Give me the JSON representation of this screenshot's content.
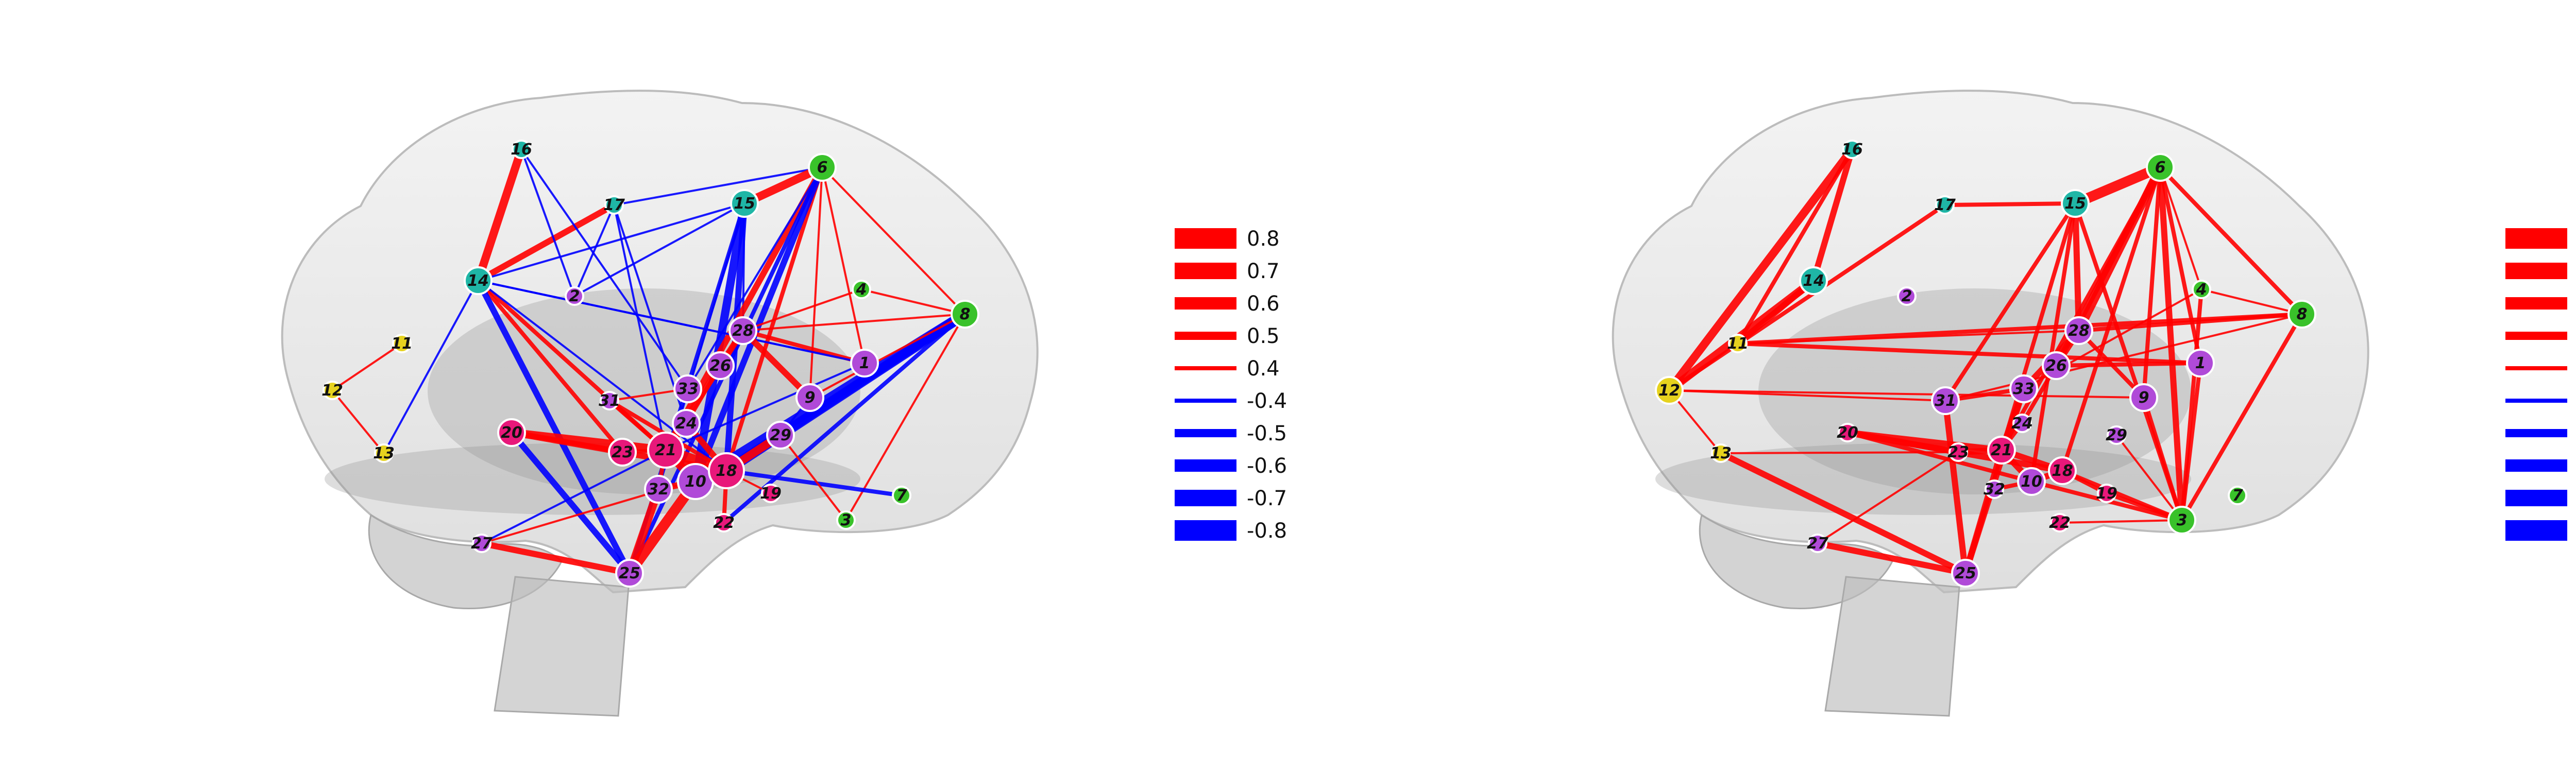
{
  "colors": {
    "positive": "#ff0000",
    "negative": "#0000ff",
    "brain": "#c9c9c9",
    "node_yellow": "#e6d21e",
    "node_green": "#39c22a",
    "node_teal": "#1fb6a6",
    "node_purple": "#b04ad8",
    "node_pink": "#e8187a"
  },
  "panels": [
    {
      "id": "left",
      "nodes": [
        {
          "id": "1",
          "label": "1",
          "color": "purple",
          "size": 1
        },
        {
          "id": "2",
          "label": "2",
          "color": "purple",
          "size": 0
        },
        {
          "id": "3",
          "label": "3",
          "color": "green",
          "size": 0
        },
        {
          "id": "4",
          "label": "4",
          "color": "green",
          "size": 0
        },
        {
          "id": "6",
          "label": "6",
          "color": "green",
          "size": 1
        },
        {
          "id": "7",
          "label": "7",
          "color": "green",
          "size": 0
        },
        {
          "id": "8",
          "label": "8",
          "color": "green",
          "size": 1
        },
        {
          "id": "9",
          "label": "9",
          "color": "purple",
          "size": 1
        },
        {
          "id": "10",
          "label": "10",
          "color": "purple",
          "size": 2
        },
        {
          "id": "11",
          "label": "11",
          "color": "yellow",
          "size": 0
        },
        {
          "id": "12",
          "label": "12",
          "color": "yellow",
          "size": 0
        },
        {
          "id": "13",
          "label": "13",
          "color": "yellow",
          "size": 0
        },
        {
          "id": "14",
          "label": "14",
          "color": "teal",
          "size": 1
        },
        {
          "id": "15",
          "label": "15",
          "color": "teal",
          "size": 1
        },
        {
          "id": "16",
          "label": "16",
          "color": "teal",
          "size": 0
        },
        {
          "id": "17",
          "label": "17",
          "color": "teal",
          "size": 0
        },
        {
          "id": "18",
          "label": "18",
          "color": "pink",
          "size": 2
        },
        {
          "id": "19",
          "label": "19",
          "color": "pink",
          "size": 0
        },
        {
          "id": "20",
          "label": "20",
          "color": "pink",
          "size": 1
        },
        {
          "id": "21",
          "label": "21",
          "color": "pink",
          "size": 2
        },
        {
          "id": "22",
          "label": "22",
          "color": "pink",
          "size": 0
        },
        {
          "id": "23",
          "label": "23",
          "color": "pink",
          "size": 1
        },
        {
          "id": "24",
          "label": "24",
          "color": "purple",
          "size": 1
        },
        {
          "id": "25",
          "label": "25",
          "color": "purple",
          "size": 1
        },
        {
          "id": "26",
          "label": "26",
          "color": "purple",
          "size": 1
        },
        {
          "id": "27",
          "label": "27",
          "color": "purple",
          "size": 0
        },
        {
          "id": "28",
          "label": "28",
          "color": "purple",
          "size": 1
        },
        {
          "id": "29",
          "label": "29",
          "color": "purple",
          "size": 1
        },
        {
          "id": "31",
          "label": "31",
          "color": "purple",
          "size": 0
        },
        {
          "id": "32",
          "label": "32",
          "color": "purple",
          "size": 1
        },
        {
          "id": "33",
          "label": "33",
          "color": "purple",
          "size": 1
        }
      ],
      "edges": [
        {
          "a": "16",
          "b": "14",
          "w": 0.7
        },
        {
          "a": "17",
          "b": "14",
          "w": 0.6
        },
        {
          "a": "14",
          "b": "23",
          "w": 0.5
        },
        {
          "a": "14",
          "b": "21",
          "w": 0.5
        },
        {
          "a": "14",
          "b": "18",
          "w": -0.4
        },
        {
          "a": "14",
          "b": "13",
          "w": -0.4
        },
        {
          "a": "14",
          "b": "15",
          "w": -0.4
        },
        {
          "a": "14",
          "b": "25",
          "w": -0.6
        },
        {
          "a": "14",
          "b": "1",
          "w": -0.4
        },
        {
          "a": "12",
          "b": "11",
          "w": 0.4
        },
        {
          "a": "12",
          "b": "13",
          "w": 0.4
        },
        {
          "a": "16",
          "b": "2",
          "w": -0.4
        },
        {
          "a": "16",
          "b": "33",
          "w": -0.4
        },
        {
          "a": "17",
          "b": "2",
          "w": -0.4
        },
        {
          "a": "17",
          "b": "24",
          "w": -0.4
        },
        {
          "a": "17",
          "b": "21",
          "w": -0.4
        },
        {
          "a": "17",
          "b": "6",
          "w": -0.4
        },
        {
          "a": "15",
          "b": "6",
          "w": 0.7
        },
        {
          "a": "15",
          "b": "10",
          "w": -0.7
        },
        {
          "a": "15",
          "b": "18",
          "w": -0.6
        },
        {
          "a": "15",
          "b": "25",
          "w": -0.5
        },
        {
          "a": "15",
          "b": "28",
          "w": -0.4
        },
        {
          "a": "15",
          "b": "2",
          "w": -0.4
        },
        {
          "a": "15",
          "b": "32",
          "w": -0.4
        },
        {
          "a": "6",
          "b": "21",
          "w": 0.6
        },
        {
          "a": "6",
          "b": "18",
          "w": 0.5
        },
        {
          "a": "6",
          "b": "9",
          "w": 0.4
        },
        {
          "a": "6",
          "b": "8",
          "w": 0.4
        },
        {
          "a": "6",
          "b": "1",
          "w": 0.4
        },
        {
          "a": "6",
          "b": "33",
          "w": -0.4
        },
        {
          "a": "6",
          "b": "10",
          "w": -0.6
        },
        {
          "a": "6",
          "b": "25",
          "w": -0.5
        },
        {
          "a": "4",
          "b": "8",
          "w": 0.4
        },
        {
          "a": "4",
          "b": "28",
          "w": 0.4
        },
        {
          "a": "8",
          "b": "18",
          "w": -0.8
        },
        {
          "a": "8",
          "b": "10",
          "w": -0.8
        },
        {
          "a": "8",
          "b": "29",
          "w": -0.7
        },
        {
          "a": "8",
          "b": "22",
          "w": -0.5
        },
        {
          "a": "8",
          "b": "3",
          "w": 0.4
        },
        {
          "a": "8",
          "b": "28",
          "w": 0.4
        },
        {
          "a": "8",
          "b": "9",
          "w": 0.4
        },
        {
          "a": "1",
          "b": "28",
          "w": 0.5
        },
        {
          "a": "1",
          "b": "14",
          "w": -0.4
        },
        {
          "a": "28",
          "b": "9",
          "w": 0.6
        },
        {
          "a": "28",
          "b": "26",
          "w": 0.5
        },
        {
          "a": "28",
          "b": "21",
          "w": 0.6
        },
        {
          "a": "26",
          "b": "24",
          "w": 0.5
        },
        {
          "a": "24",
          "b": "21",
          "w": 0.6
        },
        {
          "a": "24",
          "b": "18",
          "w": 0.6
        },
        {
          "a": "33",
          "b": "31",
          "w": 0.4
        },
        {
          "a": "31",
          "b": "21",
          "w": 0.5
        },
        {
          "a": "31",
          "b": "18",
          "w": 0.5
        },
        {
          "a": "20",
          "b": "21",
          "w": 0.7
        },
        {
          "a": "20",
          "b": "18",
          "w": 0.6
        },
        {
          "a": "20",
          "b": "23",
          "w": 0.5
        },
        {
          "a": "20",
          "b": "25",
          "w": -0.6
        },
        {
          "a": "23",
          "b": "21",
          "w": 0.5
        },
        {
          "a": "21",
          "b": "18",
          "w": 0.8
        },
        {
          "a": "21",
          "b": "10",
          "w": 0.7
        },
        {
          "a": "21",
          "b": "32",
          "w": 0.5
        },
        {
          "a": "18",
          "b": "10",
          "w": 0.8
        },
        {
          "a": "18",
          "b": "29",
          "w": 0.7
        },
        {
          "a": "18",
          "b": "19",
          "w": 0.4
        },
        {
          "a": "18",
          "b": "7",
          "w": -0.5
        },
        {
          "a": "29",
          "b": "3",
          "w": 0.4
        },
        {
          "a": "10",
          "b": "32",
          "w": 0.6
        },
        {
          "a": "10",
          "b": "25",
          "w": 0.8
        },
        {
          "a": "32",
          "b": "25",
          "w": 0.7
        },
        {
          "a": "25",
          "b": "27",
          "w": 0.6
        },
        {
          "a": "27",
          "b": "21",
          "w": -0.4
        },
        {
          "a": "27",
          "b": "18",
          "w": 0.4
        },
        {
          "a": "22",
          "b": "18",
          "w": 0.5
        },
        {
          "a": "9",
          "b": "29",
          "w": -0.4
        },
        {
          "a": "1",
          "b": "21",
          "w": -0.4
        }
      ]
    },
    {
      "id": "right",
      "nodes": [
        {
          "id": "1",
          "label": "1",
          "color": "purple",
          "size": 1
        },
        {
          "id": "2",
          "label": "2",
          "color": "purple",
          "size": 0
        },
        {
          "id": "3",
          "label": "3",
          "color": "green",
          "size": 1
        },
        {
          "id": "4",
          "label": "4",
          "color": "green",
          "size": 0
        },
        {
          "id": "6",
          "label": "6",
          "color": "green",
          "size": 1
        },
        {
          "id": "7",
          "label": "7",
          "color": "green",
          "size": 0
        },
        {
          "id": "8",
          "label": "8",
          "color": "green",
          "size": 1
        },
        {
          "id": "9",
          "label": "9",
          "color": "purple",
          "size": 1
        },
        {
          "id": "10",
          "label": "10",
          "color": "purple",
          "size": 1
        },
        {
          "id": "11",
          "label": "11",
          "color": "yellow",
          "size": 0
        },
        {
          "id": "12",
          "label": "12",
          "color": "yellow",
          "size": 1
        },
        {
          "id": "13",
          "label": "13",
          "color": "yellow",
          "size": 0
        },
        {
          "id": "14",
          "label": "14",
          "color": "teal",
          "size": 1
        },
        {
          "id": "15",
          "label": "15",
          "color": "teal",
          "size": 1
        },
        {
          "id": "16",
          "label": "16",
          "color": "teal",
          "size": 0
        },
        {
          "id": "17",
          "label": "17",
          "color": "teal",
          "size": 0
        },
        {
          "id": "18",
          "label": "18",
          "color": "pink",
          "size": 1
        },
        {
          "id": "19",
          "label": "19",
          "color": "pink",
          "size": 0
        },
        {
          "id": "20",
          "label": "20",
          "color": "pink",
          "size": 0
        },
        {
          "id": "21",
          "label": "21",
          "color": "pink",
          "size": 1
        },
        {
          "id": "22",
          "label": "22",
          "color": "pink",
          "size": 0
        },
        {
          "id": "23",
          "label": "23",
          "color": "pink",
          "size": 0
        },
        {
          "id": "24",
          "label": "24",
          "color": "purple",
          "size": 0
        },
        {
          "id": "25",
          "label": "25",
          "color": "purple",
          "size": 1
        },
        {
          "id": "26",
          "label": "26",
          "color": "purple",
          "size": 1
        },
        {
          "id": "27",
          "label": "27",
          "color": "purple",
          "size": 0
        },
        {
          "id": "28",
          "label": "28",
          "color": "purple",
          "size": 1
        },
        {
          "id": "29",
          "label": "29",
          "color": "purple",
          "size": 0
        },
        {
          "id": "31",
          "label": "31",
          "color": "purple",
          "size": 1
        },
        {
          "id": "32",
          "label": "32",
          "color": "purple",
          "size": 0
        },
        {
          "id": "33",
          "label": "33",
          "color": "purple",
          "size": 1
        }
      ],
      "edges": [
        {
          "a": "16",
          "b": "12",
          "w": 0.7
        },
        {
          "a": "16",
          "b": "14",
          "w": 0.6
        },
        {
          "a": "16",
          "b": "11",
          "w": 0.5
        },
        {
          "a": "14",
          "b": "12",
          "w": 0.7
        },
        {
          "a": "14",
          "b": "11",
          "w": 0.6
        },
        {
          "a": "17",
          "b": "15",
          "w": 0.5
        },
        {
          "a": "17",
          "b": "12",
          "w": 0.5
        },
        {
          "a": "15",
          "b": "6",
          "w": 0.8
        },
        {
          "a": "15",
          "b": "31",
          "w": 0.5
        },
        {
          "a": "15",
          "b": "21",
          "w": 0.5
        },
        {
          "a": "15",
          "b": "10",
          "w": 0.5
        },
        {
          "a": "15",
          "b": "3",
          "w": 0.5
        },
        {
          "a": "15",
          "b": "28",
          "w": 0.6
        },
        {
          "a": "6",
          "b": "28",
          "w": 0.7
        },
        {
          "a": "6",
          "b": "26",
          "w": 0.6
        },
        {
          "a": "6",
          "b": "3",
          "w": 0.6
        },
        {
          "a": "6",
          "b": "9",
          "w": 0.5
        },
        {
          "a": "6",
          "b": "8",
          "w": 0.5
        },
        {
          "a": "6",
          "b": "4",
          "w": 0.4
        },
        {
          "a": "6",
          "b": "1",
          "w": 0.5
        },
        {
          "a": "6",
          "b": "21",
          "w": 0.5
        },
        {
          "a": "6",
          "b": "18",
          "w": 0.5
        },
        {
          "a": "8",
          "b": "28",
          "w": 0.5
        },
        {
          "a": "8",
          "b": "3",
          "w": 0.5
        },
        {
          "a": "8",
          "b": "4",
          "w": 0.4
        },
        {
          "a": "4",
          "b": "3",
          "w": 0.5
        },
        {
          "a": "4",
          "b": "33",
          "w": 0.4
        },
        {
          "a": "1",
          "b": "26",
          "w": 0.5
        },
        {
          "a": "1",
          "b": "3",
          "w": 0.5
        },
        {
          "a": "9",
          "b": "3",
          "w": 0.5
        },
        {
          "a": "9",
          "b": "28",
          "w": 0.5
        },
        {
          "a": "28",
          "b": "26",
          "w": 0.6
        },
        {
          "a": "28",
          "b": "33",
          "w": 0.6
        },
        {
          "a": "33",
          "b": "21",
          "w": 0.6
        },
        {
          "a": "33",
          "b": "31",
          "w": 0.5
        },
        {
          "a": "26",
          "b": "24",
          "w": 0.5
        },
        {
          "a": "24",
          "b": "21",
          "w": 0.5
        },
        {
          "a": "11",
          "b": "8",
          "w": 0.5
        },
        {
          "a": "11",
          "b": "1",
          "w": 0.5
        },
        {
          "a": "11",
          "b": "28",
          "w": 0.4
        },
        {
          "a": "12",
          "b": "13",
          "w": 0.4
        },
        {
          "a": "12",
          "b": "31",
          "w": 0.4
        },
        {
          "a": "12",
          "b": "9",
          "w": 0.4
        },
        {
          "a": "13",
          "b": "25",
          "w": 0.6
        },
        {
          "a": "13",
          "b": "23",
          "w": 0.4
        },
        {
          "a": "20",
          "b": "21",
          "w": 0.6
        },
        {
          "a": "20",
          "b": "23",
          "w": 0.6
        },
        {
          "a": "20",
          "b": "18",
          "w": 0.6
        },
        {
          "a": "20",
          "b": "10",
          "w": 0.5
        },
        {
          "a": "23",
          "b": "21",
          "w": 0.6
        },
        {
          "a": "21",
          "b": "18",
          "w": 0.6
        },
        {
          "a": "21",
          "b": "10",
          "w": 0.6
        },
        {
          "a": "18",
          "b": "19",
          "w": 0.5
        },
        {
          "a": "18",
          "b": "10",
          "w": 0.6
        },
        {
          "a": "18",
          "b": "3",
          "w": 0.5
        },
        {
          "a": "19",
          "b": "3",
          "w": 0.5
        },
        {
          "a": "29",
          "b": "3",
          "w": 0.4
        },
        {
          "a": "31",
          "b": "25",
          "w": 0.6
        },
        {
          "a": "33",
          "b": "25",
          "w": 0.6
        },
        {
          "a": "25",
          "b": "27",
          "w": 0.6
        },
        {
          "a": "25",
          "b": "21",
          "w": 0.6
        },
        {
          "a": "27",
          "b": "23",
          "w": 0.4
        },
        {
          "a": "32",
          "b": "10",
          "w": 0.5
        },
        {
          "a": "22",
          "b": "3",
          "w": 0.4
        },
        {
          "a": "10",
          "b": "3",
          "w": 0.5
        },
        {
          "a": "31",
          "b": "8",
          "w": 0.4
        }
      ]
    }
  ],
  "legend": [
    {
      "label": "0.8",
      "value": 0.8
    },
    {
      "label": "0.7",
      "value": 0.7
    },
    {
      "label": "0.6",
      "value": 0.6
    },
    {
      "label": "0.5",
      "value": 0.5
    },
    {
      "label": "0.4",
      "value": 0.4
    },
    {
      "label": "-0.4",
      "value": -0.4
    },
    {
      "label": "-0.5",
      "value": -0.5
    },
    {
      "label": "-0.6",
      "value": -0.6
    },
    {
      "label": "-0.7",
      "value": -0.7
    },
    {
      "label": "-0.8",
      "value": -0.8
    }
  ]
}
